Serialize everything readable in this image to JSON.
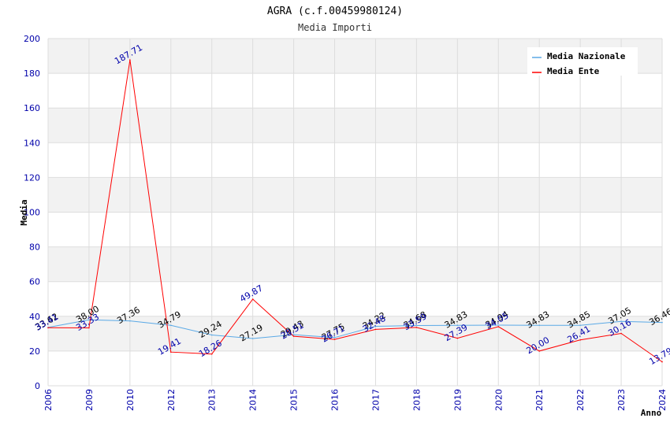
{
  "chart_data": {
    "type": "line",
    "title": "AGRA (c.f.00459980124)",
    "subtitle": "Media Importi",
    "xlabel": "Anno",
    "ylabel": "Media",
    "ylim": [
      0,
      200
    ],
    "yticks": [
      "0",
      "20",
      "40",
      "60",
      "80",
      "100",
      "120",
      "140",
      "160",
      "180",
      "200"
    ],
    "categories": [
      "2006",
      "2009",
      "2010",
      "2012",
      "2013",
      "2014",
      "2015",
      "2016",
      "2017",
      "2018",
      "2019",
      "2020",
      "2021",
      "2022",
      "2023",
      "2024"
    ],
    "series": [
      {
        "name": "Media Nazionale",
        "color": "#5aa9e6",
        "values": [
          33.62,
          38.0,
          37.36,
          34.79,
          29.24,
          27.19,
          29.43,
          27.75,
          34.22,
          34.68,
          34.83,
          34.94,
          34.83,
          34.85,
          37.05,
          36.46
        ],
        "labels": [
          "33.62",
          "38.00",
          "37.36",
          "34.79",
          "29.24",
          "27.19",
          "29.43",
          "27.75",
          "34.22",
          "34.68",
          "34.83",
          "34.94",
          "34.83",
          "34.85",
          "37.05",
          "36.46"
        ]
      },
      {
        "name": "Media Ente",
        "color": "#ff0000",
        "values": [
          33.41,
          33.33,
          187.71,
          19.41,
          18.26,
          49.87,
          28.51,
          26.71,
          32.48,
          33.59,
          27.39,
          34.05,
          20.0,
          26.41,
          30.16,
          13.79
        ],
        "labels": [
          "33.41",
          "33.33",
          "187.71",
          "19.41",
          "18.26",
          "49.87",
          "28.51",
          "26.71",
          "32.48",
          "33.59",
          "27.39",
          "34.05",
          "20.00",
          "26.41",
          "30.16",
          "13.79"
        ]
      }
    ],
    "grid": true,
    "legend": "top-right"
  }
}
